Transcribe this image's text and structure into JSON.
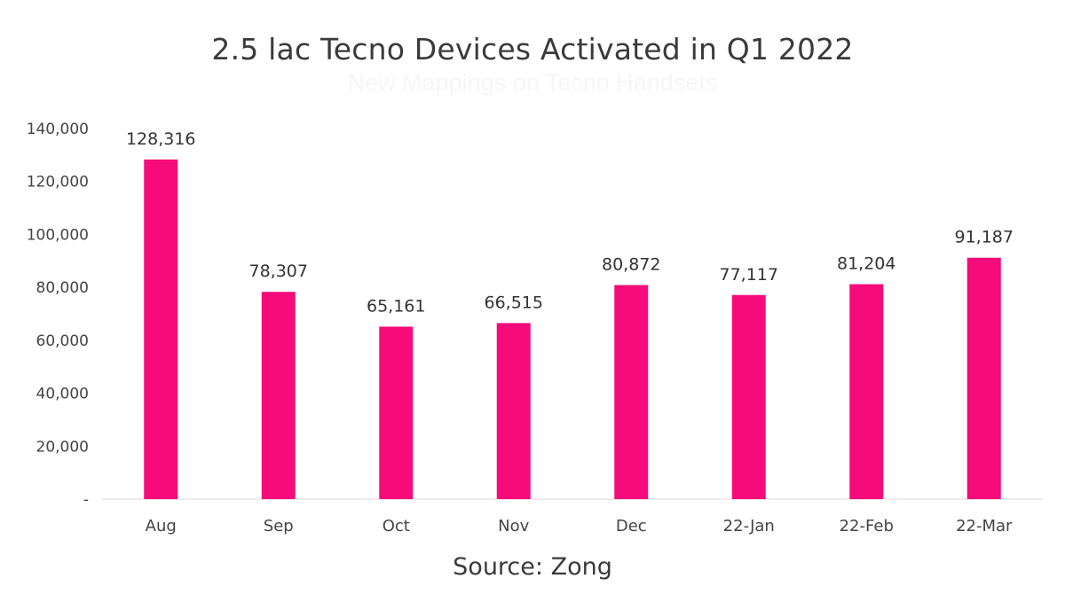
{
  "chart_data": {
    "type": "bar",
    "title": "2.5 lac Tecno Devices Activated in Q1 2022",
    "subtitle": "New Mappings on Tecno Handsets",
    "categories": [
      "Aug",
      "Sep",
      "Oct",
      "Nov",
      "Dec",
      "22-Jan",
      "22-Feb",
      "22-Mar"
    ],
    "values": [
      128316,
      78307,
      65161,
      66515,
      80872,
      77117,
      81204,
      91187
    ],
    "data_labels": [
      "128,316",
      "78,307",
      "65,161",
      "66,515",
      "80,872",
      "77,117",
      "81,204",
      "91,187"
    ],
    "ylim": [
      0,
      140000
    ],
    "yticks": [
      0,
      20000,
      40000,
      60000,
      80000,
      100000,
      120000,
      140000
    ],
    "ytick_labels": [
      "-",
      "20,000",
      "40,000",
      "60,000",
      "80,000",
      "100,000",
      "120,000",
      "140,000"
    ],
    "bar_color": "#f50b7a",
    "grid": false,
    "legend": "none"
  },
  "source": "Source: Zong"
}
